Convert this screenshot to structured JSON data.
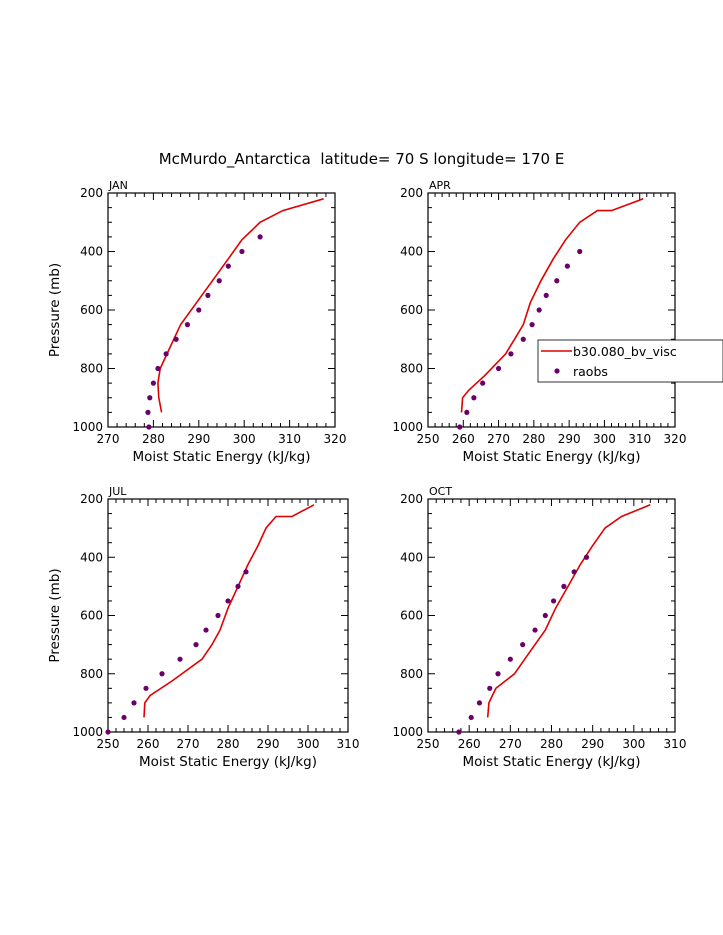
{
  "title": "McMurdo_Antarctica  latitude= 70 S longitude= 170 E",
  "legend": {
    "model_label": "b30.080_bv_visc",
    "obs_label": "raobs",
    "model_color": "#e00000",
    "obs_color": "#6a006a"
  },
  "chart_data": [
    {
      "type": "line",
      "panel_label": "JAN",
      "xlabel": "Moist Static Energy (kJ/kg)",
      "ylabel": "Pressure (mb)",
      "xlim": [
        270,
        320
      ],
      "ylim": [
        1000,
        200
      ],
      "xticks": [
        270,
        280,
        290,
        300,
        310,
        320
      ],
      "yticks": [
        200,
        400,
        600,
        800,
        1000
      ],
      "grid": false,
      "series": [
        {
          "name": "b30.080_bv_visc",
          "style": "line",
          "x": [
            281.8,
            281.2,
            281.0,
            281.5,
            283.0,
            286.0,
            289.5,
            293.0,
            296.5,
            299.5,
            303.5,
            308.5,
            317.5
          ],
          "y": [
            950,
            900,
            850,
            800,
            750,
            650,
            575,
            500,
            425,
            360,
            300,
            260,
            220
          ]
        },
        {
          "name": "raobs",
          "style": "markers",
          "x": [
            279.0,
            278.8,
            279.2,
            280.0,
            281.0,
            282.8,
            285.0,
            287.5,
            290.0,
            292.0,
            294.5,
            296.5,
            299.5,
            303.5
          ],
          "y": [
            1000,
            950,
            900,
            850,
            800,
            750,
            700,
            650,
            600,
            550,
            500,
            450,
            400,
            350
          ]
        }
      ]
    },
    {
      "type": "line",
      "panel_label": "APR",
      "xlabel": "Moist Static Energy (kJ/kg)",
      "ylabel": "",
      "xlim": [
        250,
        320
      ],
      "ylim": [
        1000,
        200
      ],
      "xticks": [
        250,
        260,
        270,
        280,
        290,
        300,
        310,
        320
      ],
      "yticks": [
        200,
        400,
        600,
        800,
        1000
      ],
      "grid": false,
      "legend_position": "right",
      "series": [
        {
          "name": "b30.080_bv_visc",
          "style": "line",
          "x": [
            259.5,
            259.8,
            261.5,
            266.0,
            272.0,
            274.5,
            277.0,
            279.0,
            282.0,
            285.5,
            289.0,
            293.0,
            298.0,
            302.0,
            311.0
          ],
          "y": [
            950,
            900,
            875,
            825,
            750,
            700,
            650,
            575,
            500,
            425,
            360,
            300,
            260,
            260,
            220
          ]
        },
        {
          "name": "raobs",
          "style": "markers",
          "x": [
            259.0,
            261.0,
            263.0,
            265.5,
            270.0,
            273.5,
            277.0,
            279.5,
            281.5,
            283.5,
            286.5,
            289.5,
            293.0
          ],
          "y": [
            1000,
            950,
            900,
            850,
            800,
            750,
            700,
            650,
            600,
            550,
            500,
            450,
            400
          ]
        }
      ]
    },
    {
      "type": "line",
      "panel_label": "JUL",
      "xlabel": "Moist Static Energy (kJ/kg)",
      "ylabel": "Pressure (mb)",
      "xlim": [
        250,
        310
      ],
      "ylim": [
        1000,
        200
      ],
      "xticks": [
        250,
        260,
        270,
        280,
        290,
        300,
        310
      ],
      "yticks": [
        200,
        400,
        600,
        800,
        1000
      ],
      "grid": false,
      "series": [
        {
          "name": "b30.080_bv_visc",
          "style": "line",
          "x": [
            259.0,
            259.2,
            260.5,
            266.0,
            273.5,
            276.0,
            278.0,
            280.0,
            282.5,
            285.0,
            287.5,
            289.5,
            292.0,
            296.0,
            301.5
          ],
          "y": [
            950,
            900,
            875,
            825,
            750,
            700,
            650,
            575,
            500,
            425,
            360,
            300,
            260,
            260,
            220
          ]
        },
        {
          "name": "raobs",
          "style": "markers",
          "x": [
            250.0,
            254.0,
            256.5,
            259.5,
            263.5,
            268.0,
            272.0,
            274.5,
            277.5,
            280.0,
            282.5,
            284.5
          ],
          "y": [
            1000,
            950,
            900,
            850,
            800,
            750,
            700,
            650,
            600,
            550,
            500,
            450
          ]
        }
      ]
    },
    {
      "type": "line",
      "panel_label": "OCT",
      "xlabel": "Moist Static Energy (kJ/kg)",
      "ylabel": "",
      "xlim": [
        250,
        310
      ],
      "ylim": [
        1000,
        200
      ],
      "xticks": [
        250,
        260,
        270,
        280,
        290,
        300,
        310
      ],
      "yticks": [
        200,
        400,
        600,
        800,
        1000
      ],
      "grid": false,
      "series": [
        {
          "name": "b30.080_bv_visc",
          "style": "line",
          "x": [
            264.5,
            264.8,
            266.5,
            271.0,
            273.5,
            276.0,
            278.5,
            281.0,
            284.0,
            287.0,
            290.0,
            293.0,
            297.0,
            304.0
          ],
          "y": [
            950,
            900,
            850,
            800,
            750,
            700,
            650,
            575,
            500,
            425,
            360,
            300,
            260,
            220
          ]
        },
        {
          "name": "raobs",
          "style": "markers",
          "x": [
            257.5,
            260.5,
            262.5,
            265.0,
            267.0,
            270.0,
            273.0,
            276.0,
            278.5,
            280.5,
            283.0,
            285.5,
            288.5
          ],
          "y": [
            1000,
            950,
            900,
            850,
            800,
            750,
            700,
            650,
            600,
            550,
            500,
            450,
            400
          ]
        }
      ]
    }
  ]
}
